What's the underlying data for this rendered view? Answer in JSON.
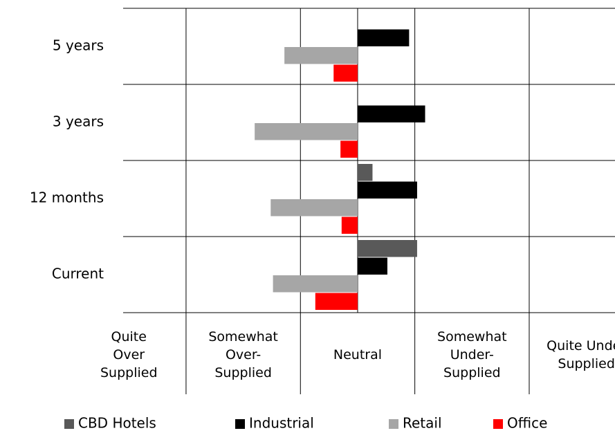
{
  "chart_data": {
    "type": "hbar",
    "categories": [
      "5 years",
      "3 years",
      "12 months",
      "Current"
    ],
    "series": [
      {
        "name": "CBD Hotels",
        "color": "#595959",
        "values": [
          null,
          null,
          0.13,
          0.52
        ]
      },
      {
        "name": "Industrial",
        "color": "#000000",
        "values": [
          0.45,
          0.59,
          0.52,
          0.26
        ]
      },
      {
        "name": "Retail",
        "color": "#a6a6a6",
        "values": [
          -0.64,
          -0.9,
          -0.76,
          -0.74
        ]
      },
      {
        "name": "Office",
        "color": "#ff0000",
        "values": [
          -0.21,
          -0.15,
          -0.14,
          -0.37
        ]
      }
    ],
    "xlim": [
      -2.05,
      2.25
    ],
    "xticks": [
      {
        "value": -2,
        "label": "Quite Over Supplied"
      },
      {
        "value": -1,
        "label": "Somewhat Over-Supplied"
      },
      {
        "value": 0,
        "label": "Neutral"
      },
      {
        "value": 1,
        "label": "Somewhat Under-Supplied"
      },
      {
        "value": 2,
        "label": "Quite Under Supplied"
      }
    ],
    "xgrid": [
      -1.5,
      -0.5,
      0.5,
      1.5
    ],
    "grid": true,
    "legend": "bottom"
  }
}
